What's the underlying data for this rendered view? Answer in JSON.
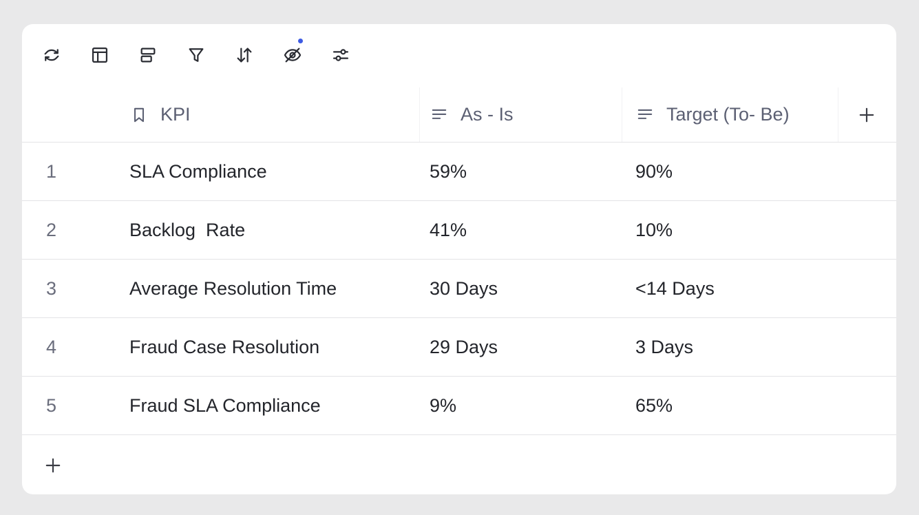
{
  "toolbar": {
    "icons": [
      "refresh-icon",
      "layout-icon",
      "group-icon",
      "filter-icon",
      "sort-icon",
      "hide-fields-icon",
      "settings-sliders-icon"
    ],
    "indicator_color": "#3d5be3"
  },
  "table": {
    "columns": [
      {
        "label": "KPI",
        "icon": "bookmark-icon"
      },
      {
        "label": "As - Is",
        "icon": "text-lines-icon"
      },
      {
        "label": "Target (To- Be)",
        "icon": "text-lines-icon"
      }
    ],
    "rows": [
      {
        "num": "1",
        "kpi": "SLA Compliance",
        "as_is": "59%",
        "target": "90%"
      },
      {
        "num": "2",
        "kpi": "Backlog  Rate",
        "as_is": "41%",
        "target": "10%"
      },
      {
        "num": "3",
        "kpi": "Average Resolution Time",
        "as_is": "30 Days",
        "target": "<14 Days"
      },
      {
        "num": "4",
        "kpi": "Fraud Case Resolution",
        "as_is": "29 Days",
        "target": "3 Days"
      },
      {
        "num": "5",
        "kpi": "Fraud SLA Compliance",
        "as_is": "9%",
        "target": "65%"
      }
    ],
    "add_column_icon": "plus-icon",
    "add_row_icon": "plus-icon"
  }
}
